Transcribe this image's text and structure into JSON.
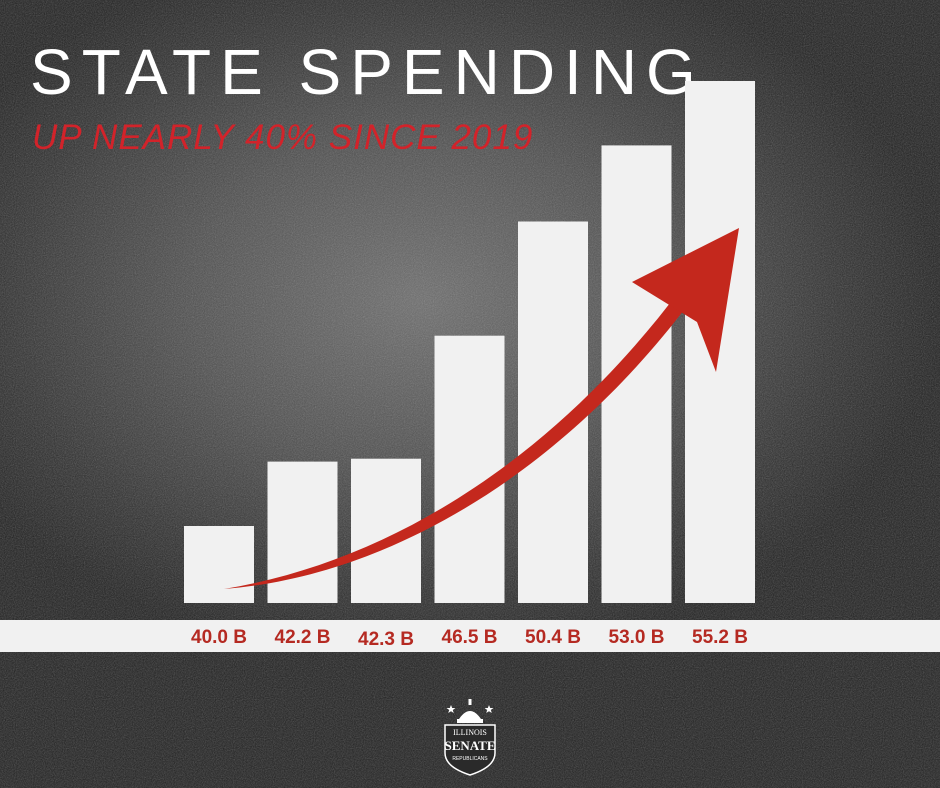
{
  "title": "STATE SPENDING",
  "subtitle": "UP NEARLY 40% SINCE 2019",
  "colors": {
    "accent": "#d2232a",
    "label": "#b52a22",
    "bar": "#f1f1f1",
    "baseline_band": "#f1f1f1",
    "arrow": "#c4281d",
    "background": "#3a3a3a"
  },
  "logo": {
    "line1": "ILLINOIS",
    "line2": "SENATE",
    "line3": "REPUBLICANS",
    "icon": "capitol-dome-shield-icon"
  },
  "chart_data": {
    "type": "bar",
    "categories": [
      "40.0 B",
      "42.2 B",
      "42.3 B",
      "46.5 B",
      "50.4 B",
      "53.0 B",
      "55.2 B"
    ],
    "values": [
      40.0,
      42.2,
      42.3,
      46.5,
      50.4,
      53.0,
      55.2
    ],
    "unit": "B",
    "title": "STATE SPENDING",
    "subtitle": "UP NEARLY 40% SINCE 2019",
    "trend_arrow": true,
    "grid": false,
    "legend": "none"
  }
}
